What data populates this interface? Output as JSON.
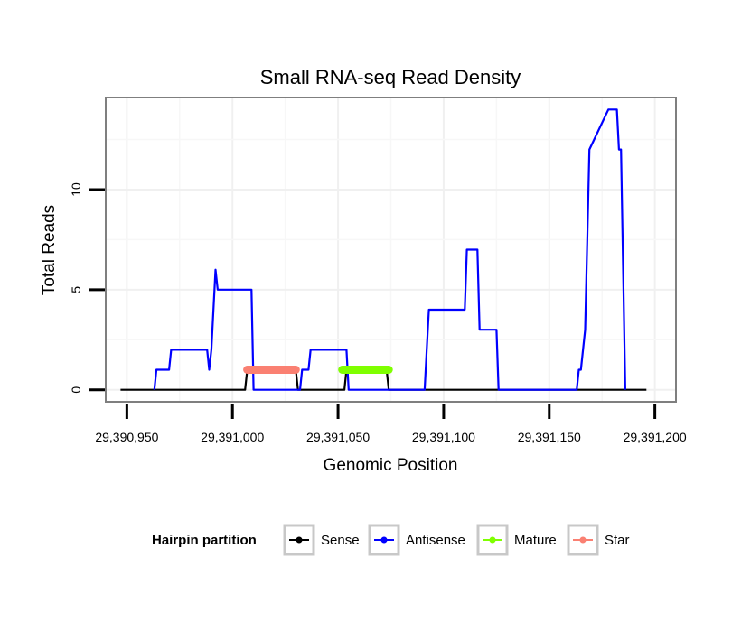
{
  "chart_data": {
    "type": "line",
    "title": "Small RNA-seq Read Density",
    "xlabel": "Genomic Position",
    "ylabel": "Total Reads",
    "xlim": [
      29390940,
      29391210
    ],
    "ylim": [
      -0.6,
      14.6
    ],
    "x_ticks": [
      29390950,
      29391000,
      29391050,
      29391100,
      29391150,
      29391200
    ],
    "x_tick_labels": [
      "29,390,950",
      "29,391,000",
      "29,391,050",
      "29,391,100",
      "29,391,150",
      "29,391,200"
    ],
    "y_ticks": [
      0,
      5,
      10
    ],
    "y_tick_labels": [
      "0",
      "5",
      "10"
    ],
    "grid": true,
    "legend": {
      "title": "Hairpin partition",
      "position": "bottom",
      "entries": [
        {
          "name": "Sense",
          "color": "#000000"
        },
        {
          "name": "Antisense",
          "color": "#0000ff"
        },
        {
          "name": "Mature",
          "color": "#7fff00"
        },
        {
          "name": "Star",
          "color": "#fa8072"
        }
      ]
    },
    "series": [
      {
        "name": "Sense",
        "color": "#000000",
        "x": [
          29390947,
          29391006,
          29391007,
          29391030,
          29391031,
          29391053,
          29391054,
          29391073,
          29391074,
          29391196
        ],
        "y": [
          0,
          0,
          1,
          1,
          0,
          0,
          1,
          1,
          0,
          0
        ]
      },
      {
        "name": "Antisense",
        "color": "#0000ff",
        "x": [
          29390963,
          29390964,
          29390970,
          29390971,
          29390988,
          29390989,
          29390990,
          29390991,
          29390992,
          29390993,
          29391009,
          29391010,
          29391032,
          29391033,
          29391036,
          29391037,
          29391054,
          29391055,
          29391091,
          29391092,
          29391093,
          29391110,
          29391111,
          29391116,
          29391117,
          29391125,
          29391126,
          29391140,
          29391141,
          29391162,
          29391163,
          29391164,
          29391165,
          29391167,
          29391169,
          29391178,
          29391180,
          29391182,
          29391183,
          29391184,
          29391186
        ],
        "y": [
          0,
          1,
          1,
          2,
          2,
          1,
          2,
          4,
          6,
          5,
          5,
          0,
          0,
          1,
          1,
          2,
          2,
          0,
          0,
          2,
          4,
          4,
          7,
          7,
          3,
          3,
          0,
          0,
          0,
          0,
          0,
          1,
          1,
          3,
          12,
          14,
          14,
          14,
          12,
          12,
          0
        ]
      },
      {
        "name": "Mature",
        "color": "#7fff00",
        "x": [
          29391052,
          29391074
        ],
        "y": [
          1,
          1
        ]
      },
      {
        "name": "Star",
        "color": "#fa8072",
        "x": [
          29391007,
          29391030
        ],
        "y": [
          1,
          1
        ]
      }
    ]
  }
}
